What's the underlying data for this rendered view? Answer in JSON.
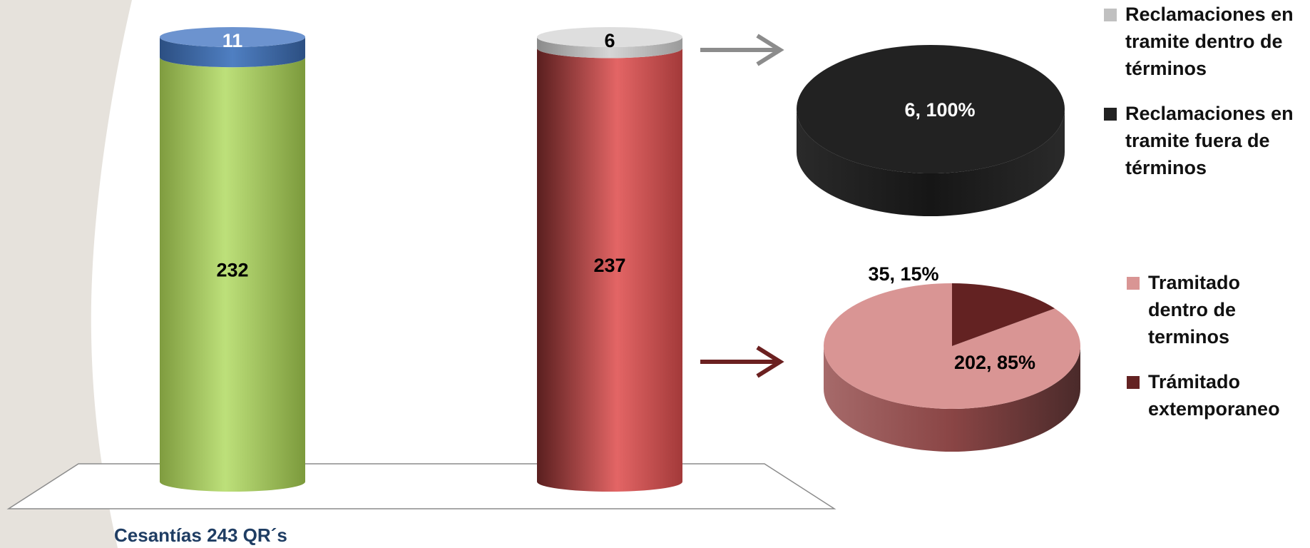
{
  "caption": "Cesantías 243 QR´s",
  "colors": {
    "green": "#a9cc62",
    "blue": "#3e6aa8",
    "red": "#d55a5a",
    "gray": "#c0c0c0",
    "black": "#222222",
    "pink": "#d99594",
    "maroon": "#632222",
    "arrow_gray": "#8c8c8c",
    "arrow_maroon": "#6b2020"
  },
  "chart_data": [
    {
      "type": "bar",
      "subtype": "stacked-cylinder",
      "series": [
        {
          "values": [
            232
          ],
          "color": "green"
        },
        {
          "values": [
            11
          ],
          "color": "blue"
        }
      ],
      "data_labels": [
        "232",
        "11"
      ]
    },
    {
      "type": "bar",
      "subtype": "stacked-cylinder",
      "series": [
        {
          "values": [
            237
          ],
          "color": "red"
        },
        {
          "values": [
            6
          ],
          "color": "gray"
        }
      ],
      "data_labels": [
        "237",
        "6"
      ]
    },
    {
      "type": "pie",
      "legend": "right",
      "slices": [
        {
          "name": "Reclamaciones en tramite dentro de términos",
          "value": 0,
          "percent": 0,
          "color": "gray"
        },
        {
          "name": "Reclamaciones en tramite fuera de términos",
          "value": 6,
          "percent": 100,
          "color": "black",
          "label": "6, 100%"
        }
      ]
    },
    {
      "type": "pie",
      "legend": "right",
      "slices": [
        {
          "name": "Tramitado dentro de terminos",
          "value": 202,
          "percent": 85,
          "color": "pink",
          "label": "202, 85%"
        },
        {
          "name": "Trámitado extemporaneo",
          "value": 35,
          "percent": 15,
          "color": "maroon",
          "label": "35, 15%"
        }
      ]
    }
  ]
}
